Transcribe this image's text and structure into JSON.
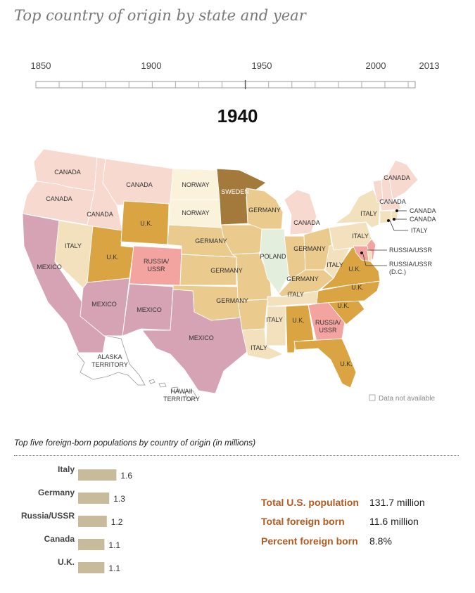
{
  "title": "Top country of origin by state and year",
  "timeline": {
    "ticks": [
      {
        "year": 1850,
        "label": "1850"
      },
      {
        "year": 1900,
        "label": "1900"
      },
      {
        "year": 1950,
        "label": "1950"
      },
      {
        "year": 2000,
        "label": "2000"
      },
      {
        "year": 2013,
        "label": "2013"
      }
    ],
    "selected_year": 1940
  },
  "year_heading": "1940",
  "colors": {
    "CANADA": "#f7d9cf",
    "NORWAY": "#fbf2dc",
    "SWEDEN": "#a37a3c",
    "GERMANY": "#ebca8e",
    "U.K.": "#d9a441",
    "ITALY": "#f2e1bc",
    "POLAND": "#e4eedd",
    "RUSSIA/USSR": "#f4a4a0",
    "MEXICO": "#d6a3b4",
    "na": "#ffffff"
  },
  "map_labels": {
    "wa": "CANADA",
    "or": "CANADA",
    "id": "CANADA",
    "mt": "CANADA",
    "nd": "NORWAY",
    "sd": "NORWAY",
    "mn": "SWEDEN",
    "wy": "U.K.",
    "nv": "ITALY",
    "ca": "MEXICO",
    "ut": "U.K.",
    "co": "RUSSIA/ USSR",
    "ne": "GERMANY",
    "ks": "GERMANY",
    "wi": "GERMANY",
    "il": "POLAND",
    "mi": "CANADA",
    "oh": "GERMANY",
    "in": "GERMANY",
    "az": "MEXICO",
    "nm": "MEXICO",
    "ok": "GERMANY",
    "tx": "MEXICO",
    "ky": "GERMANY",
    "tn": "ITALY",
    "ms": "ITALY",
    "la": "ITALY",
    "al": "U.K.",
    "ga": "RUSSIA/ USSR",
    "sc": "U.K.",
    "nc": "U.K.",
    "va": "U.K.",
    "wv": "ITALY",
    "fl": "U.K.",
    "ny": "ITALY",
    "pa": "ITALY",
    "vt": "CANADA",
    "me": "CANADA",
    "nh": "CANADA",
    "ak": "ALASKA TERRITORY",
    "hi": "HAWAII TERRITORY"
  },
  "map_callouts": [
    {
      "label": "CANADA"
    },
    {
      "label": "CANADA"
    },
    {
      "label": "ITALY"
    },
    {
      "label": "RUSSIA/USSR"
    },
    {
      "label": "RUSSIA/USSR (D.C.)"
    }
  ],
  "legend_na": "Data not available",
  "chart_subtitle": "Top five foreign-born populations by country of origin (in millions)",
  "chart_data": {
    "type": "bar",
    "categories": [
      "Italy",
      "Germany",
      "Russia/USSR",
      "Canada",
      "U.K."
    ],
    "values": [
      1.6,
      1.3,
      1.2,
      1.1,
      1.1
    ],
    "value_labels": [
      "1.6",
      "1.3",
      "1.2",
      "1.1",
      "1.1"
    ],
    "bar_color": "#c8bb9c"
  },
  "stats": [
    {
      "label": "Total U.S. population",
      "value": "131.7 million"
    },
    {
      "label": "Total foreign born",
      "value": "11.6 million"
    },
    {
      "label": "Percent foreign born",
      "value": "8.8%"
    }
  ]
}
